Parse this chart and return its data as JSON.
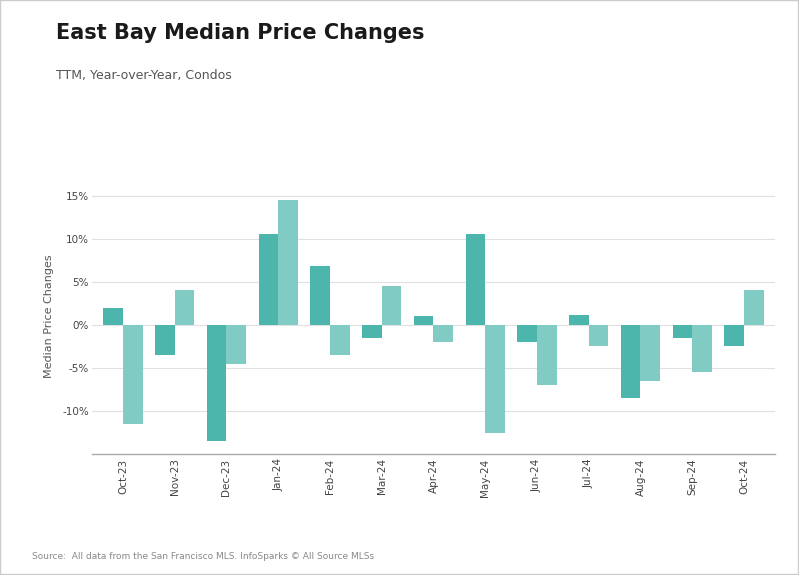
{
  "title": "East Bay Median Price Changes",
  "subtitle": "TTM, Year-over-Year, Condos",
  "ylabel": "Median Price Changes",
  "source": "Source:  All data from the San Francisco MLS. InfoSparks © All Source MLSs",
  "categories": [
    "Oct-23",
    "Nov-23",
    "Dec-23",
    "Jan-24",
    "Feb-24",
    "Mar-24",
    "Apr-24",
    "May-24",
    "Jun-24",
    "Jul-24",
    "Aug-24",
    "Sep-24",
    "Oct-24"
  ],
  "alameda": [
    2.0,
    -3.5,
    -13.5,
    10.5,
    6.8,
    -1.5,
    1.0,
    10.5,
    -2.0,
    1.2,
    -8.5,
    -1.5,
    -2.5
  ],
  "contra_costa": [
    -11.5,
    4.0,
    -4.5,
    14.5,
    -3.5,
    4.5,
    -2.0,
    -12.5,
    -7.0,
    -2.5,
    -6.5,
    -5.5,
    4.0
  ],
  "alameda_color": "#4db6ac",
  "contra_costa_color": "#80cbc4",
  "outer_border_color": "#cccccc",
  "background_color": "#ffffff",
  "plot_bg_color": "#f9f9f9",
  "ylim": [
    -15,
    17
  ],
  "yticks": [
    -10,
    -5,
    0,
    5,
    10,
    15
  ],
  "bar_width": 0.38,
  "title_fontsize": 15,
  "subtitle_fontsize": 9,
  "axis_fontsize": 8,
  "tick_fontsize": 7.5,
  "source_fontsize": 6.5,
  "legend_fontsize": 8.5
}
